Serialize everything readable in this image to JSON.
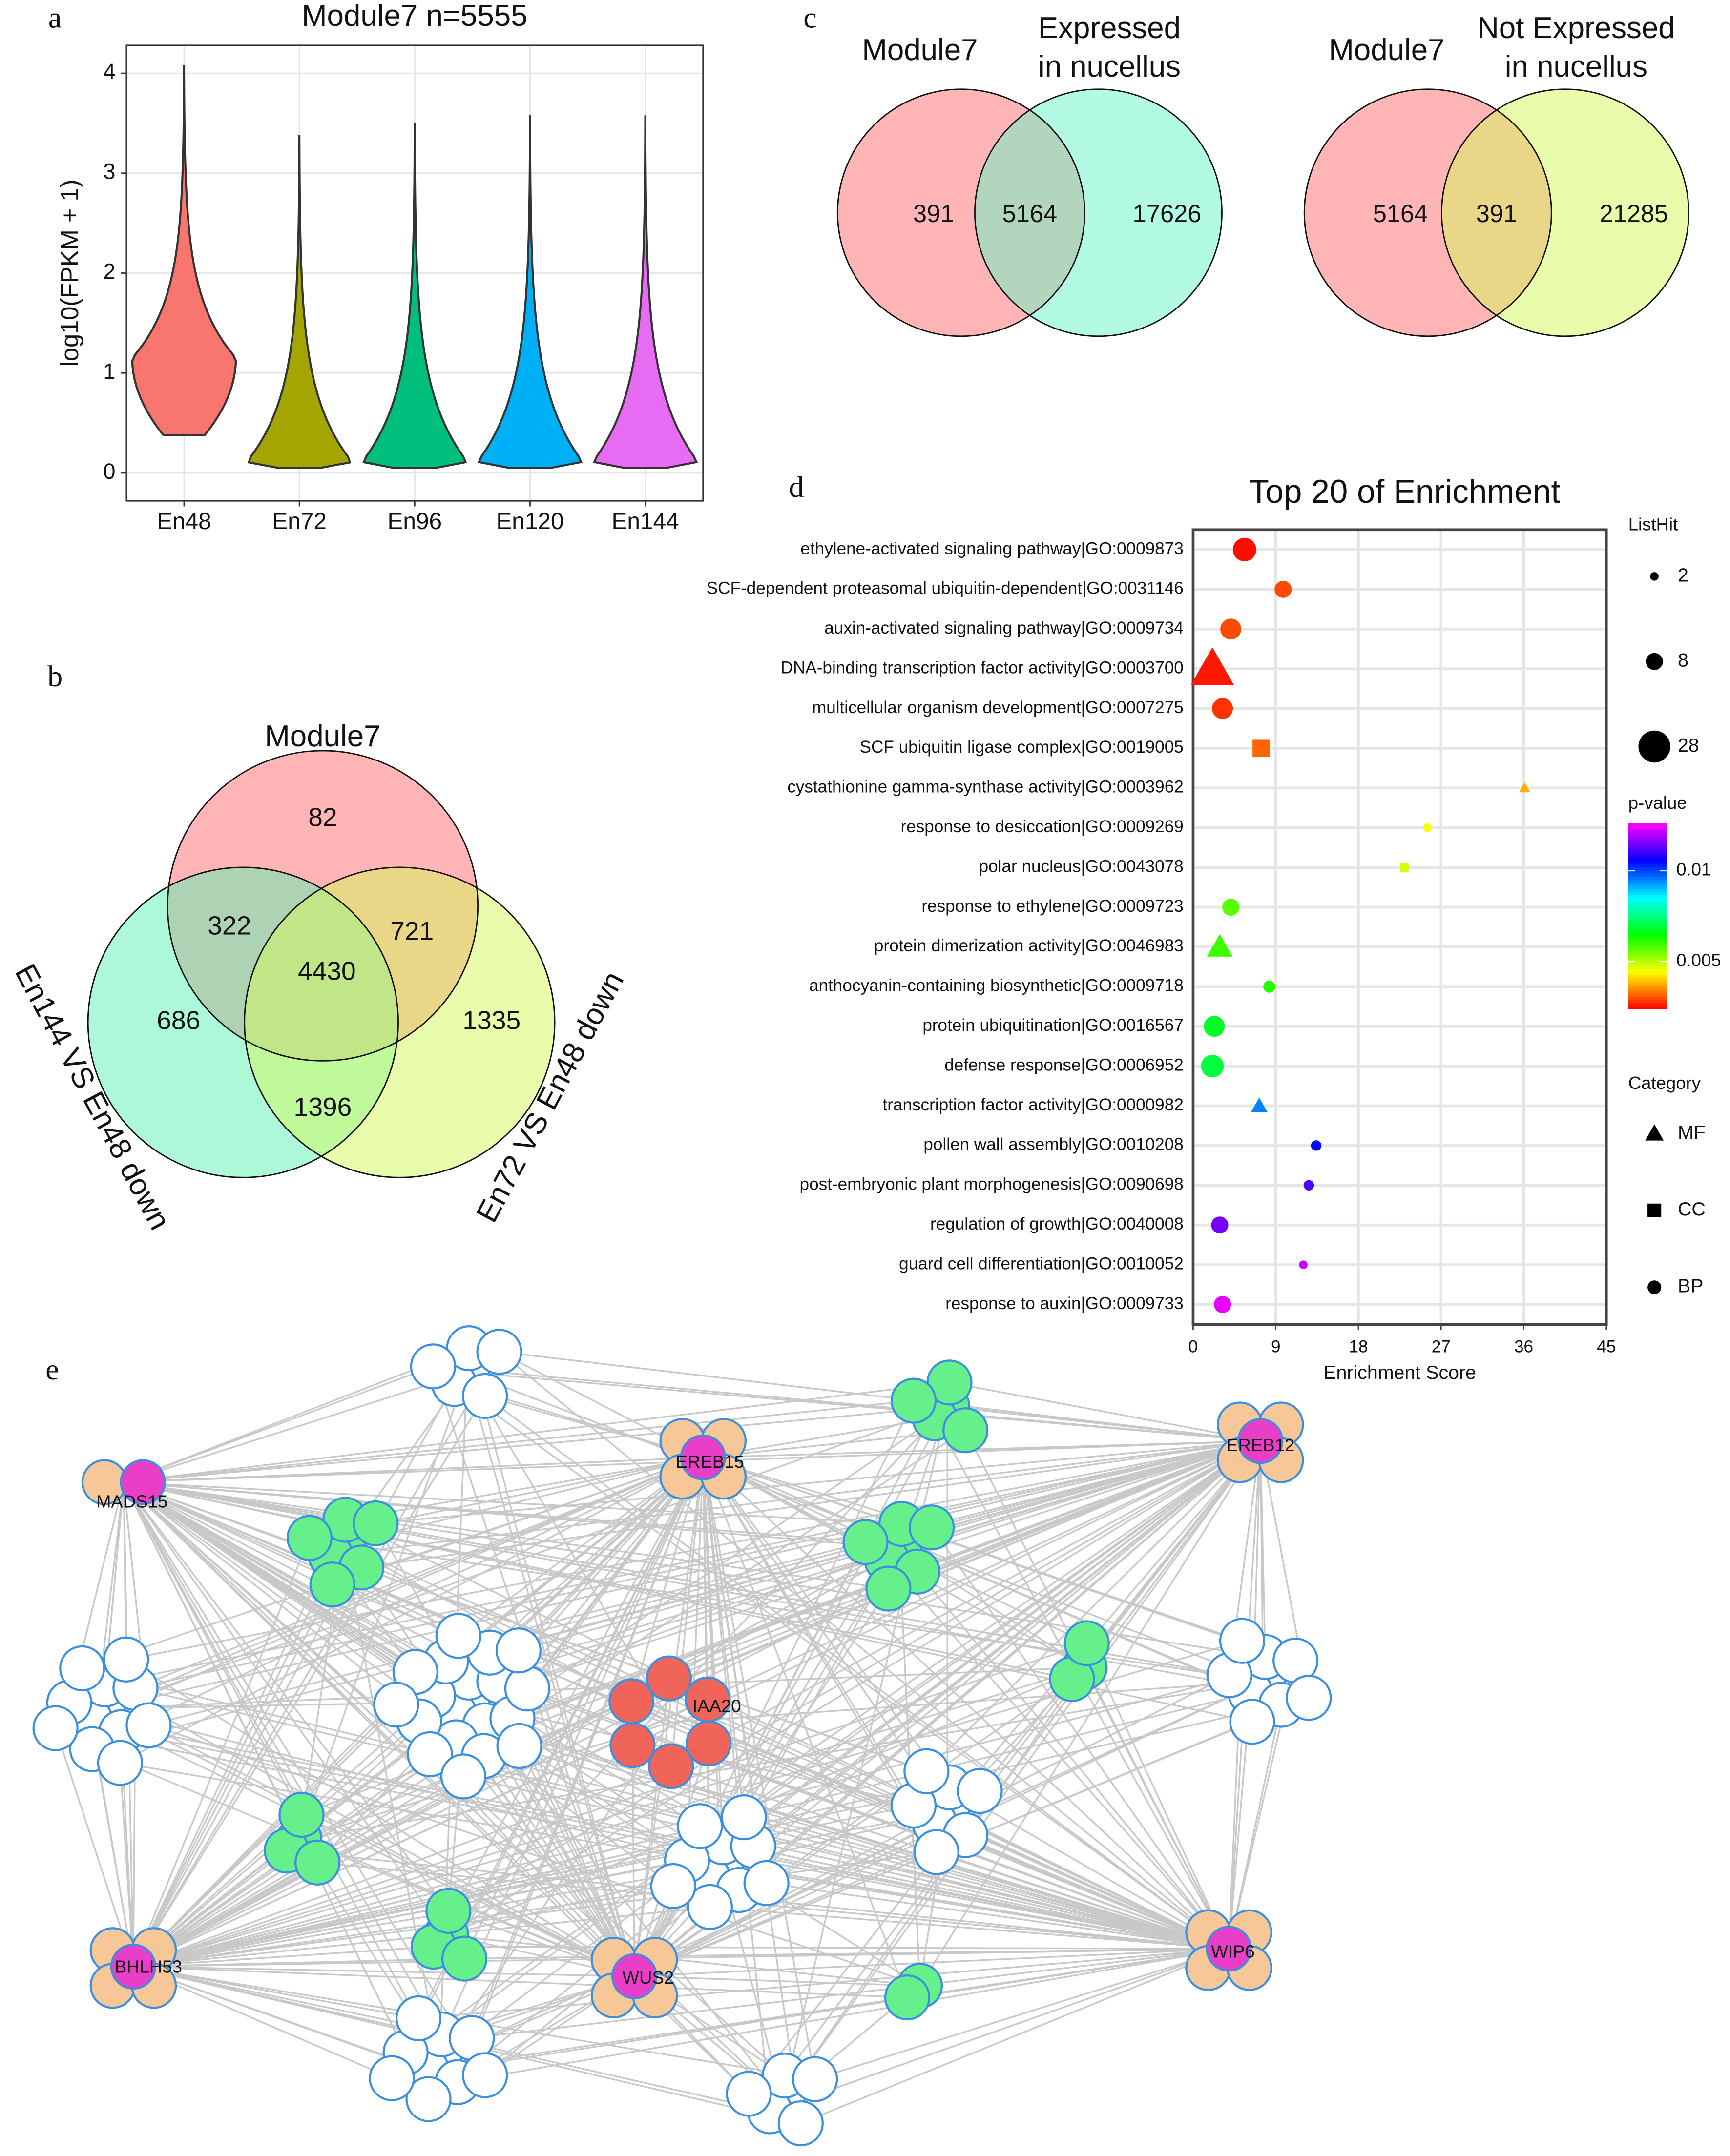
{
  "chart_data": [
    {
      "type": "violin",
      "panel_label": "a",
      "title": "Module7 n=5555",
      "ylabel": "log10(FPKM + 1)",
      "categories": [
        "En48",
        "En72",
        "En96",
        "En120",
        "En144"
      ],
      "colors": [
        "#f8766d",
        "#a3a500",
        "#00bf7d",
        "#00b0f6",
        "#e76bf3"
      ],
      "min": [
        0.38,
        0.05,
        0.05,
        0.05,
        0.05
      ],
      "peak": [
        1.15,
        0.12,
        0.12,
        0.12,
        0.12
      ],
      "max": [
        4.08,
        3.38,
        3.5,
        3.58,
        3.58
      ],
      "ylim": [
        -0.28,
        4.28
      ],
      "yticks": [
        0,
        1,
        2,
        3,
        4
      ],
      "grid": true
    },
    {
      "type": "venn3",
      "panel_label": "b",
      "sets": [
        {
          "name": "Module7",
          "color": "#ff6b6b"
        },
        {
          "name": "En144 VS En48 down",
          "color": "#5cf2b4"
        },
        {
          "name": "En72 VS En48 down",
          "color": "#d4fa5a"
        }
      ],
      "values": [
        82,
        322,
        721,
        4430,
        686,
        1335,
        1396
      ]
    },
    {
      "type": "venn2",
      "panel_label": "c",
      "sets": [
        {
          "name": [
            "Module7"
          ],
          "color": "#ff6b6b"
        },
        {
          "name": [
            "Expressed",
            "in nucellus"
          ],
          "color": "#66f5c8"
        }
      ],
      "values": [
        391,
        5164,
        17626
      ]
    },
    {
      "type": "venn2",
      "sets": [
        {
          "name": [
            "Module7"
          ],
          "color": "#ff6b6b"
        },
        {
          "name": [
            "Not Expressed",
            "in nucellus"
          ],
          "color": "#d4fa5a"
        }
      ],
      "values": [
        5164,
        391,
        21285
      ]
    },
    {
      "type": "bubble",
      "panel_label": "d",
      "title": "Top 20 of  Enrichment",
      "xlabel": "Enrichment Score",
      "categories": [
        "ethylene-activated signaling pathway|GO:0009873",
        "SCF-dependent proteasomal ubiquitin-dependent|GO:0031146",
        "auxin-activated signaling pathway|GO:0009734",
        "DNA-binding transcription factor activity|GO:0003700",
        "multicellular organism development|GO:0007275",
        "SCF ubiquitin ligase complex|GO:0019005",
        "cystathionine gamma-synthase activity|GO:0003962",
        "response to desiccation|GO:0009269",
        "polar nucleus|GO:0043078",
        "response to ethylene|GO:0009723",
        "protein dimerization activity|GO:0046983",
        "anthocyanin-containing biosynthetic|GO:0009718",
        "protein ubiquitination|GO:0016567",
        "defense response|GO:0006952",
        "transcription factor activity|GO:0000982",
        "pollen wall assembly|GO:0010208",
        "post-embryonic plant morphogenesis|GO:0090698",
        "regulation of growth|GO:0040008",
        "guard cell differentiation|GO:0010052",
        "response to auxin|GO:0009733"
      ],
      "x": [
        5.6,
        9.8,
        4.1,
        2.1,
        3.2,
        7.4,
        36.1,
        25.5,
        23,
        4.1,
        2.9,
        8.3,
        2.3,
        2.1,
        7.2,
        13.4,
        12.6,
        2.9,
        12,
        3.2
      ],
      "sizes": [
        15,
        8,
        12,
        28,
        12,
        8,
        2,
        2,
        2,
        8,
        10,
        4,
        12,
        14,
        4,
        3,
        3,
        8,
        2,
        8
      ],
      "pvalues": [
        0.0025,
        0.003,
        0.003,
        0.0026,
        0.0028,
        0.0032,
        0.0038,
        0.0045,
        0.0048,
        0.0058,
        0.006,
        0.0062,
        0.0068,
        0.007,
        0.0095,
        0.0105,
        0.0112,
        0.0115,
        0.0122,
        0.0124
      ],
      "groups": [
        "BP",
        "BP",
        "BP",
        "MF",
        "BP",
        "CC",
        "MF",
        "BP",
        "CC",
        "BP",
        "MF",
        "BP",
        "BP",
        "BP",
        "MF",
        "BP",
        "BP",
        "BP",
        "BP",
        "BP"
      ],
      "xlim": [
        0,
        45
      ],
      "xticks": [
        0,
        9,
        18,
        27,
        36,
        45
      ],
      "grid": true,
      "size_legend": {
        "title": "ListHit",
        "values": [
          2,
          8,
          28
        ]
      },
      "color_legend": {
        "title": "p-value",
        "lim": [
          0.0024,
          0.0126
        ],
        "ticks": [
          0.005,
          0.01
        ]
      },
      "shape_legend": {
        "title": "Category",
        "values": [
          "MF",
          "CC",
          "BP"
        ]
      }
    }
  ],
  "network": {
    "panel_label": "e",
    "labels": [
      "MADS15",
      "EREB15",
      "EREB12",
      "IAA20",
      "BHLH53",
      "WUS2",
      "WIP6"
    ]
  }
}
